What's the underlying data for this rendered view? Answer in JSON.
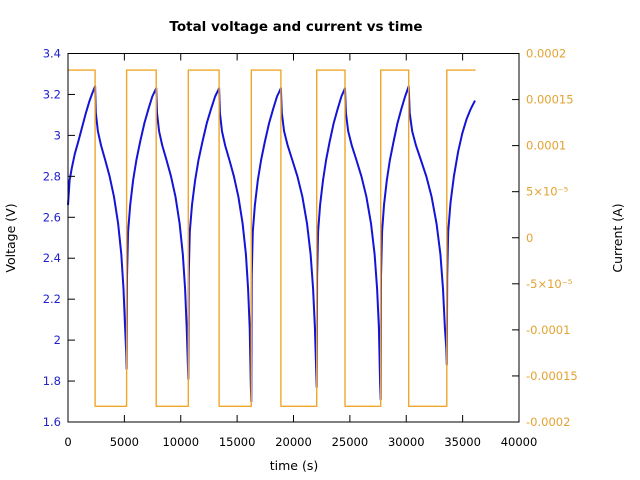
{
  "chart_data": {
    "type": "line",
    "title": "Total voltage and current vs time",
    "xlabel": "time (s)",
    "ylabel_left": "Voltage (V)",
    "ylabel_right": "Current (A)",
    "xlim": [
      0,
      40000
    ],
    "ylim_left": [
      1.6,
      3.4
    ],
    "ylim_right": [
      -0.0002,
      0.0002
    ],
    "grid": false,
    "legend": "none",
    "xticks": {
      "values": [
        0,
        5000,
        10000,
        15000,
        20000,
        25000,
        30000,
        35000,
        40000
      ],
      "labels": [
        "0",
        "5000",
        "10000",
        "15000",
        "20000",
        "25000",
        "30000",
        "35000",
        "40000"
      ]
    },
    "yticks_left": {
      "values": [
        3.4,
        3.2,
        3.0,
        2.8,
        2.6,
        2.4,
        2.2,
        2.0,
        1.8,
        1.6
      ],
      "labels": [
        "3.4",
        "3.2",
        "3",
        "2.8",
        "2.6",
        "2.4",
        "2.2",
        "2",
        "1.8",
        "1.6"
      ]
    },
    "yticks_right": {
      "values": [
        0.0002,
        0.00015,
        0.0001,
        5e-05,
        0,
        -5e-05,
        -0.0001,
        -0.00015,
        -0.0002
      ],
      "labels": [
        "0.0002",
        "0.00015",
        "0.0001",
        "5×10⁻⁵",
        "0",
        "-5×10⁻⁵",
        "-0.0001",
        "-0.00015",
        "-0.0002"
      ]
    },
    "series": [
      {
        "name": "voltage",
        "axis": "left",
        "color": "#1414d6",
        "width": 2,
        "points": [
          [
            0,
            2.66
          ],
          [
            144,
            2.78
          ],
          [
            336,
            2.84
          ],
          [
            600,
            2.91
          ],
          [
            912,
            2.97
          ],
          [
            1248,
            3.04
          ],
          [
            1584,
            3.11
          ],
          [
            1920,
            3.17
          ],
          [
            2184,
            3.21
          ],
          [
            2400,
            3.24
          ],
          [
            2470,
            3.11
          ],
          [
            2652,
            3.02
          ],
          [
            2932,
            2.95
          ],
          [
            3296,
            2.88
          ],
          [
            3688,
            2.8
          ],
          [
            4080,
            2.7
          ],
          [
            4444,
            2.57
          ],
          [
            4724,
            2.42
          ],
          [
            4920,
            2.25
          ],
          [
            5060,
            2.06
          ],
          [
            5158,
            1.94
          ],
          [
            5200,
            1.86
          ],
          [
            5231,
            2.31
          ],
          [
            5331,
            2.53
          ],
          [
            5514,
            2.66
          ],
          [
            5776,
            2.78
          ],
          [
            6065,
            2.88
          ],
          [
            6405,
            2.97
          ],
          [
            6772,
            3.06
          ],
          [
            7139,
            3.13
          ],
          [
            7479,
            3.19
          ],
          [
            7820,
            3.23
          ],
          [
            7891,
            3.11
          ],
          [
            8077,
            3.02
          ],
          [
            8362,
            2.95
          ],
          [
            8732,
            2.88
          ],
          [
            9131,
            2.8
          ],
          [
            9530,
            2.7
          ],
          [
            9901,
            2.57
          ],
          [
            10186,
            2.42
          ],
          [
            10385,
            2.25
          ],
          [
            10528,
            2.06
          ],
          [
            10627,
            1.89
          ],
          [
            10670,
            1.81
          ],
          [
            10703,
            2.31
          ],
          [
            10807,
            2.53
          ],
          [
            10998,
            2.66
          ],
          [
            11271,
            2.78
          ],
          [
            11571,
            2.88
          ],
          [
            11926,
            2.97
          ],
          [
            12308,
            3.06
          ],
          [
            12690,
            3.13
          ],
          [
            13045,
            3.19
          ],
          [
            13400,
            3.23
          ],
          [
            13472,
            3.11
          ],
          [
            13657,
            3.02
          ],
          [
            13943,
            2.95
          ],
          [
            14315,
            2.88
          ],
          [
            14716,
            2.8
          ],
          [
            15116,
            2.7
          ],
          [
            15488,
            2.57
          ],
          [
            15774,
            2.42
          ],
          [
            15974,
            2.25
          ],
          [
            16117,
            2.06
          ],
          [
            16217,
            1.78
          ],
          [
            16260,
            1.7
          ],
          [
            16291,
            2.31
          ],
          [
            16391,
            2.53
          ],
          [
            16574,
            2.66
          ],
          [
            16836,
            2.78
          ],
          [
            17125,
            2.88
          ],
          [
            17465,
            2.97
          ],
          [
            17832,
            3.06
          ],
          [
            18199,
            3.13
          ],
          [
            18539,
            3.19
          ],
          [
            18880,
            3.23
          ],
          [
            18960,
            3.11
          ],
          [
            19166,
            3.02
          ],
          [
            19484,
            2.95
          ],
          [
            19898,
            2.88
          ],
          [
            20343,
            2.8
          ],
          [
            20788,
            2.7
          ],
          [
            21201,
            2.57
          ],
          [
            21519,
            2.42
          ],
          [
            21742,
            2.25
          ],
          [
            21901,
            2.06
          ],
          [
            22012,
            1.85
          ],
          [
            22060,
            1.77
          ],
          [
            22090,
            2.31
          ],
          [
            22186,
            2.53
          ],
          [
            22361,
            2.66
          ],
          [
            22612,
            2.78
          ],
          [
            22888,
            2.88
          ],
          [
            23215,
            2.97
          ],
          [
            23566,
            3.06
          ],
          [
            23917,
            3.13
          ],
          [
            24244,
            3.19
          ],
          [
            24570,
            3.23
          ],
          [
            24649,
            3.11
          ],
          [
            24854,
            3.02
          ],
          [
            25170,
            2.95
          ],
          [
            25581,
            2.88
          ],
          [
            26024,
            2.8
          ],
          [
            26466,
            2.7
          ],
          [
            26877,
            2.57
          ],
          [
            27193,
            2.42
          ],
          [
            27414,
            2.25
          ],
          [
            27572,
            2.06
          ],
          [
            27683,
            1.79
          ],
          [
            27730,
            1.71
          ],
          [
            27760,
            2.31
          ],
          [
            27855,
            2.53
          ],
          [
            28029,
            2.66
          ],
          [
            28278,
            2.78
          ],
          [
            28552,
            2.88
          ],
          [
            28875,
            2.97
          ],
          [
            29224,
            3.06
          ],
          [
            29573,
            3.13
          ],
          [
            29896,
            3.19
          ],
          [
            30220,
            3.24
          ],
          [
            30305,
            3.11
          ],
          [
            30524,
            3.02
          ],
          [
            30862,
            2.95
          ],
          [
            31302,
            2.88
          ],
          [
            31775,
            2.8
          ],
          [
            32248,
            2.7
          ],
          [
            32687,
            2.57
          ],
          [
            33025,
            2.42
          ],
          [
            33262,
            2.25
          ],
          [
            33431,
            2.06
          ],
          [
            33549,
            1.96
          ],
          [
            33600,
            1.88
          ],
          [
            33630,
            2.31
          ],
          [
            33725,
            2.53
          ],
          [
            33925,
            2.67
          ],
          [
            34225,
            2.8
          ],
          [
            34600,
            2.92
          ],
          [
            34975,
            3.01
          ],
          [
            35350,
            3.08
          ],
          [
            35725,
            3.13
          ],
          [
            36100,
            3.17
          ]
        ]
      },
      {
        "name": "current",
        "axis": "right",
        "color": "#efa62a",
        "width": 1.4,
        "points": [
          [
            0,
            0.000182
          ],
          [
            2400,
            0.000182
          ],
          [
            2400,
            -0.000183
          ],
          [
            5200,
            -0.000183
          ],
          [
            5200,
            0.000182
          ],
          [
            7820,
            0.000182
          ],
          [
            7820,
            -0.000183
          ],
          [
            10670,
            -0.000183
          ],
          [
            10670,
            0.000182
          ],
          [
            13400,
            0.000182
          ],
          [
            13400,
            -0.000183
          ],
          [
            16260,
            -0.000183
          ],
          [
            16260,
            0.000182
          ],
          [
            18880,
            0.000182
          ],
          [
            18880,
            -0.000183
          ],
          [
            22060,
            -0.000183
          ],
          [
            22060,
            0.000182
          ],
          [
            24570,
            0.000182
          ],
          [
            24570,
            -0.000183
          ],
          [
            27730,
            -0.000183
          ],
          [
            27730,
            0.000182
          ],
          [
            30220,
            0.000182
          ],
          [
            30220,
            -0.000183
          ],
          [
            33600,
            -0.000183
          ],
          [
            33600,
            0.000182
          ],
          [
            36150,
            0.000182
          ]
        ]
      }
    ]
  },
  "colors": {
    "voltage_line": "#1414d6",
    "voltage_text": "#2222cc",
    "current_line": "#efa62a",
    "current_text": "#e2a231",
    "frame": "#000000",
    "background": "#ffffff"
  }
}
